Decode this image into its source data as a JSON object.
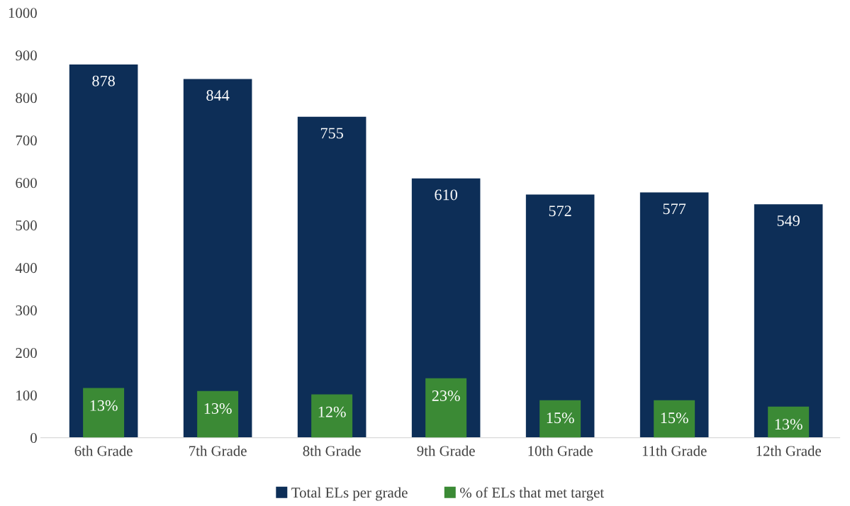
{
  "chart_data": {
    "type": "bar",
    "categories": [
      "6th Grade",
      "7th Grade",
      "8th Grade",
      "9th Grade",
      "10th Grade",
      "11th Grade",
      "12th Grade"
    ],
    "series": [
      {
        "name": "Total ELs per grade",
        "color": "#0d2e57",
        "values": [
          878,
          844,
          755,
          610,
          572,
          577,
          549
        ],
        "value_labels": [
          "878",
          "844",
          "755",
          "610",
          "572",
          "577",
          "549"
        ]
      },
      {
        "name": "% of ELs that met target",
        "color": "#3b8a35",
        "values": [
          117,
          110,
          102,
          140,
          88,
          88,
          73
        ]
      }
    ],
    "annotations": [
      {
        "text": "13%",
        "x": "6th Grade",
        "y": 117
      },
      {
        "text": "13%",
        "x": "7th Grade",
        "y": 110
      },
      {
        "text": "12%",
        "x": "8th Grade",
        "y": 102
      },
      {
        "text": "23%",
        "x": "9th Grade",
        "y": 140
      },
      {
        "text": "15%",
        "x": "10th Grade",
        "y": 88
      },
      {
        "text": "15%",
        "x": "11th Grade",
        "y": 88
      },
      {
        "text": "13%",
        "x": "12th Grade",
        "y": 73
      }
    ],
    "ylim": [
      0,
      1000
    ],
    "yticks": [
      0,
      100,
      200,
      300,
      400,
      500,
      600,
      700,
      800,
      900,
      1000
    ],
    "grid": false,
    "legend": "bottom"
  }
}
